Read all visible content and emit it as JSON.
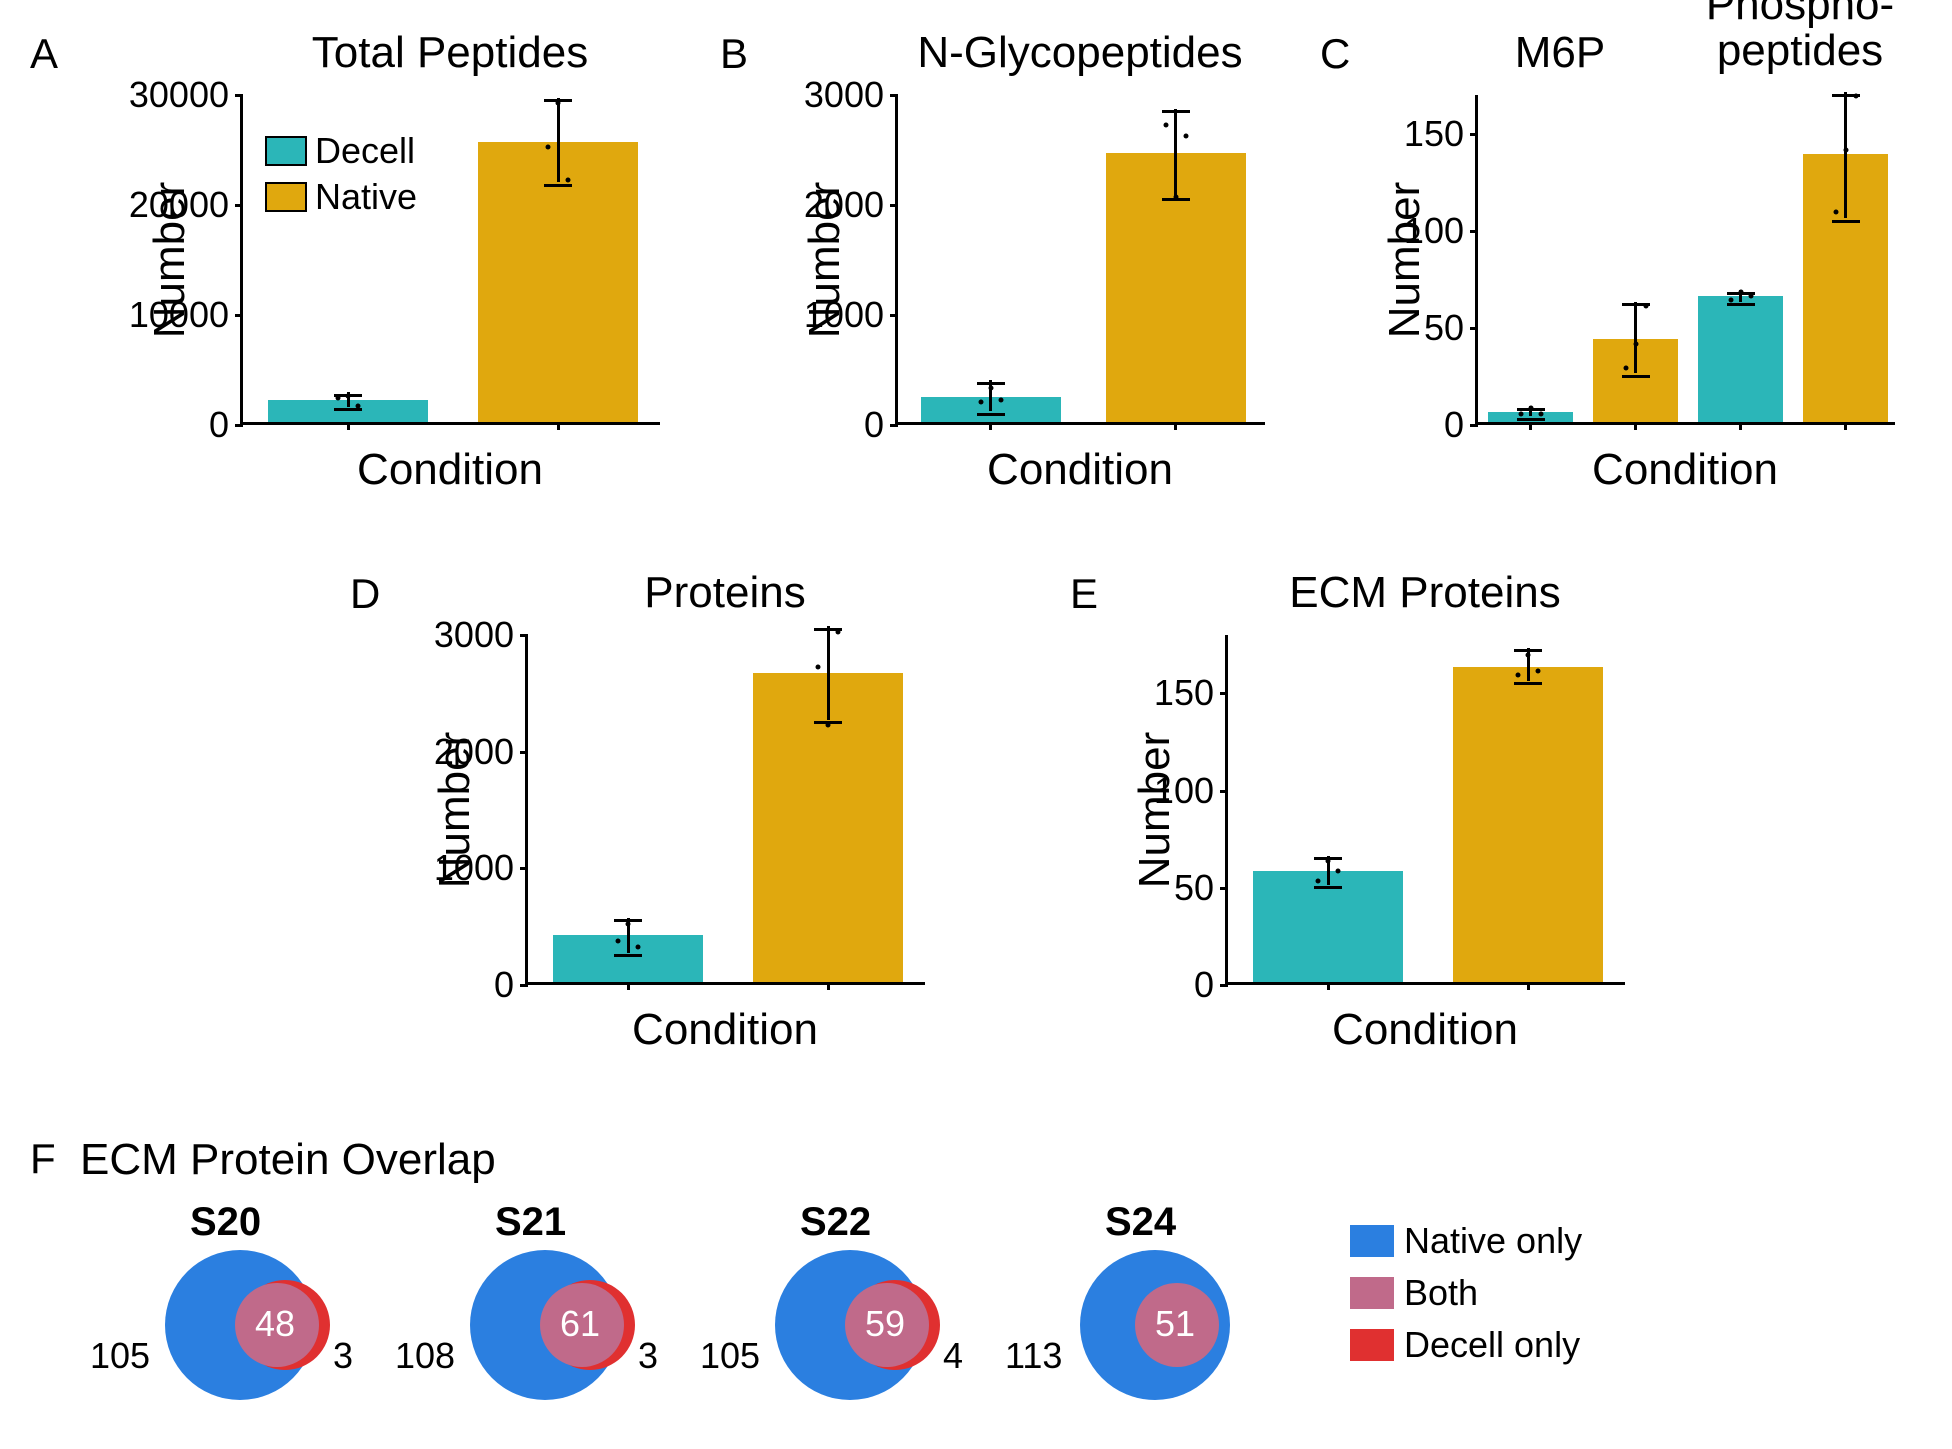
{
  "colors": {
    "decell": "#2bb6b8",
    "native": "#e0a80e",
    "axis": "#000000",
    "text": "#000000",
    "native_only": "#2b7fe0",
    "both": "#c06a8a",
    "decell_only": "#e03030",
    "bg": "#ffffff"
  },
  "fonts": {
    "panel_label": 42,
    "title": 44,
    "axis_label": 44,
    "tick": 36,
    "legend": 36,
    "venn_label": 40,
    "venn_num": 36,
    "venn_num_inside": 36,
    "section_title": 44
  },
  "legend_ab": {
    "items": [
      {
        "swatch": "#2bb6b8",
        "label": "Decell"
      },
      {
        "swatch": "#e0a80e",
        "label": "Native"
      }
    ]
  },
  "panelA": {
    "label": "A",
    "title": "Total Peptides",
    "ylabel": "Number",
    "xlabel": "Condition",
    "ylim": [
      0,
      30000
    ],
    "yticks": [
      0,
      10000,
      20000,
      30000
    ],
    "bars": [
      {
        "x": 0,
        "value": 2000,
        "err_lo": 1400,
        "err_hi": 2700,
        "color": "#2bb6b8",
        "dots": [
          2200,
          2400,
          1500
        ]
      },
      {
        "x": 1,
        "value": 25500,
        "err_lo": 21800,
        "err_hi": 29500,
        "color": "#e0a80e",
        "dots": [
          25000,
          29000,
          22000
        ]
      }
    ]
  },
  "panelB": {
    "label": "B",
    "title": "N-Glycopeptides",
    "ylabel": "Number",
    "xlabel": "Condition",
    "ylim": [
      0,
      3000
    ],
    "yticks": [
      0,
      1000,
      2000,
      3000
    ],
    "bars": [
      {
        "x": 0,
        "value": 230,
        "err_lo": 100,
        "err_hi": 380,
        "color": "#2bb6b8",
        "dots": [
          180,
          310,
          200
        ]
      },
      {
        "x": 1,
        "value": 2450,
        "err_lo": 2050,
        "err_hi": 2850,
        "color": "#e0a80e",
        "dots": [
          2700,
          2050,
          2600
        ]
      }
    ]
  },
  "panelC": {
    "label": "C",
    "title_left": "M6P",
    "title_right": "Phospho-\npeptides",
    "ylabel": "Number",
    "xlabel": "Condition",
    "ylim": [
      0,
      170
    ],
    "yticks": [
      0,
      50,
      100,
      150
    ],
    "bars": [
      {
        "x": 0,
        "value": 5,
        "err_lo": 3,
        "err_hi": 8,
        "color": "#2bb6b8",
        "dots": [
          4,
          7,
          4
        ]
      },
      {
        "x": 1,
        "value": 43,
        "err_lo": 25,
        "err_hi": 62,
        "color": "#e0a80e",
        "dots": [
          28,
          40,
          60
        ]
      },
      {
        "x": 2,
        "value": 65,
        "err_lo": 62,
        "err_hi": 68,
        "color": "#2bb6b8",
        "dots": [
          63,
          67,
          65
        ]
      },
      {
        "x": 3,
        "value": 138,
        "err_lo": 105,
        "err_hi": 170,
        "color": "#e0a80e",
        "dots": [
          108,
          140,
          168
        ]
      }
    ]
  },
  "panelD": {
    "label": "D",
    "title": "Proteins",
    "ylabel": "Number",
    "xlabel": "Condition",
    "ylim": [
      0,
      3000
    ],
    "yticks": [
      0,
      1000,
      2000,
      3000
    ],
    "bars": [
      {
        "x": 0,
        "value": 400,
        "err_lo": 250,
        "err_hi": 550,
        "color": "#2bb6b8",
        "dots": [
          350,
          500,
          300
        ]
      },
      {
        "x": 1,
        "value": 2650,
        "err_lo": 2250,
        "err_hi": 3050,
        "color": "#e0a80e",
        "dots": [
          2700,
          2200,
          3000
        ]
      }
    ]
  },
  "panelE": {
    "label": "E",
    "title": "ECM Proteins",
    "ylabel": "Number",
    "xlabel": "Condition",
    "ylim": [
      0,
      180
    ],
    "yticks": [
      0,
      50,
      100,
      150
    ],
    "bars": [
      {
        "x": 0,
        "value": 57,
        "err_lo": 50,
        "err_hi": 65,
        "color": "#2bb6b8",
        "dots": [
          52,
          62,
          57
        ]
      },
      {
        "x": 1,
        "value": 162,
        "err_lo": 155,
        "err_hi": 172,
        "color": "#e0a80e",
        "dots": [
          158,
          168,
          160
        ]
      }
    ]
  },
  "panelF": {
    "label": "F",
    "title": "ECM Protein Overlap",
    "venns": [
      {
        "sample": "S20",
        "native_only": 105,
        "both": 48,
        "decell_only": 3
      },
      {
        "sample": "S21",
        "native_only": 108,
        "both": 61,
        "decell_only": 3
      },
      {
        "sample": "S22",
        "native_only": 105,
        "both": 59,
        "decell_only": 4
      },
      {
        "sample": "S24",
        "native_only": 113,
        "both": 51,
        "decell_only": null
      }
    ],
    "legend": [
      {
        "swatch": "#2b7fe0",
        "label": "Native only"
      },
      {
        "swatch": "#c06a8a",
        "label": "Both"
      },
      {
        "swatch": "#e03030",
        "label": "Decell only"
      }
    ]
  }
}
